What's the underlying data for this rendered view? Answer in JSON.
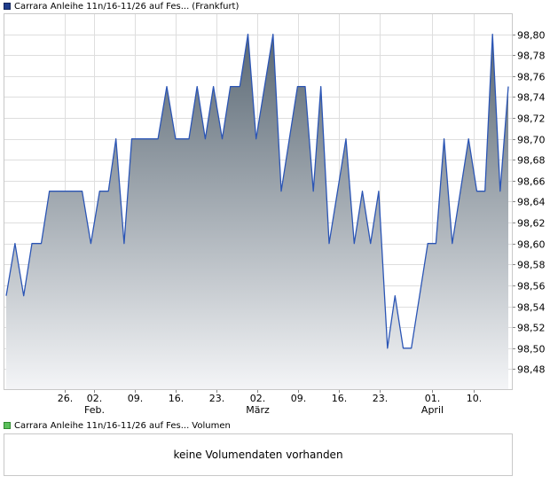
{
  "colors": {
    "price_swatch": "#1f3d8c",
    "volume_swatch": "#5cc05c",
    "line": "#2b55b5",
    "fill_top": "#5a6874",
    "fill_bottom": "#f4f5f7",
    "grid": "#dedede",
    "frame": "#c8c8c8"
  },
  "legend": {
    "price_name": "Carrara Anleihe 11n/16-11/26 auf Fes...",
    "price_exchange": "(Frankfurt)",
    "volume_name": "Carrara Anleihe 11n/16-11/26 auf Fes...",
    "volume_label": "Volumen"
  },
  "volume_panel": {
    "message": "keine Volumendaten vorhanden"
  },
  "chart_data": {
    "type": "area",
    "ylim": [
      98.46,
      98.82
    ],
    "y_ticks": [
      "98,48",
      "98,50",
      "98,52",
      "98,54",
      "98,56",
      "98,58",
      "98,60",
      "98,62",
      "98,64",
      "98,66",
      "98,68",
      "98,70",
      "98,72",
      "98,74",
      "98,76",
      "98,78",
      "98,80"
    ],
    "x_ticks": [
      {
        "label": "26.",
        "sub": "",
        "t": 10
      },
      {
        "label": "02.",
        "sub": "Feb.",
        "t": 15
      },
      {
        "label": "09.",
        "sub": "",
        "t": 22
      },
      {
        "label": "16.",
        "sub": "",
        "t": 29
      },
      {
        "label": "23.",
        "sub": "",
        "t": 36
      },
      {
        "label": "02.",
        "sub": "März",
        "t": 43
      },
      {
        "label": "09.",
        "sub": "",
        "t": 50
      },
      {
        "label": "16.",
        "sub": "",
        "t": 57
      },
      {
        "label": "23.",
        "sub": "",
        "t": 64
      },
      {
        "label": "01.",
        "sub": "April",
        "t": 73
      },
      {
        "label": "10.",
        "sub": "",
        "t": 80
      }
    ],
    "x_range": [
      0,
      86
    ],
    "series": [
      {
        "points": [
          [
            0,
            98.55
          ],
          [
            1.5,
            98.6
          ],
          [
            3,
            98.55
          ],
          [
            4.4,
            98.6
          ],
          [
            6,
            98.6
          ],
          [
            7.4,
            98.65
          ],
          [
            10,
            98.65
          ],
          [
            13,
            98.65
          ],
          [
            14.5,
            98.6
          ],
          [
            16,
            98.65
          ],
          [
            17.5,
            98.65
          ],
          [
            18.8,
            98.7
          ],
          [
            20.2,
            98.6
          ],
          [
            21.5,
            98.7
          ],
          [
            24,
            98.7
          ],
          [
            26,
            98.7
          ],
          [
            27.5,
            98.75
          ],
          [
            29,
            98.7
          ],
          [
            31.3,
            98.7
          ],
          [
            32.7,
            98.75
          ],
          [
            34.1,
            98.7
          ],
          [
            35.5,
            98.75
          ],
          [
            37,
            98.7
          ],
          [
            38.4,
            98.75
          ],
          [
            40,
            98.75
          ],
          [
            41.4,
            98.8
          ],
          [
            42.8,
            98.7
          ],
          [
            45.7,
            98.8
          ],
          [
            47.1,
            98.65
          ],
          [
            49.9,
            98.75
          ],
          [
            51.2,
            98.75
          ],
          [
            52.6,
            98.65
          ],
          [
            53.9,
            98.75
          ],
          [
            55.3,
            98.6
          ],
          [
            58.2,
            98.7
          ],
          [
            59.6,
            98.6
          ],
          [
            61,
            98.65
          ],
          [
            62.4,
            98.6
          ],
          [
            63.8,
            98.65
          ],
          [
            65.3,
            98.5
          ],
          [
            66.6,
            98.55
          ],
          [
            68,
            98.5
          ],
          [
            69.4,
            98.5
          ],
          [
            72.2,
            98.6
          ],
          [
            73.6,
            98.6
          ],
          [
            75,
            98.7
          ],
          [
            76.4,
            98.6
          ],
          [
            79.2,
            98.7
          ],
          [
            80.6,
            98.65
          ],
          [
            82,
            98.65
          ],
          [
            83.3,
            98.8
          ],
          [
            84.6,
            98.65
          ],
          [
            86,
            98.75
          ]
        ]
      }
    ]
  }
}
